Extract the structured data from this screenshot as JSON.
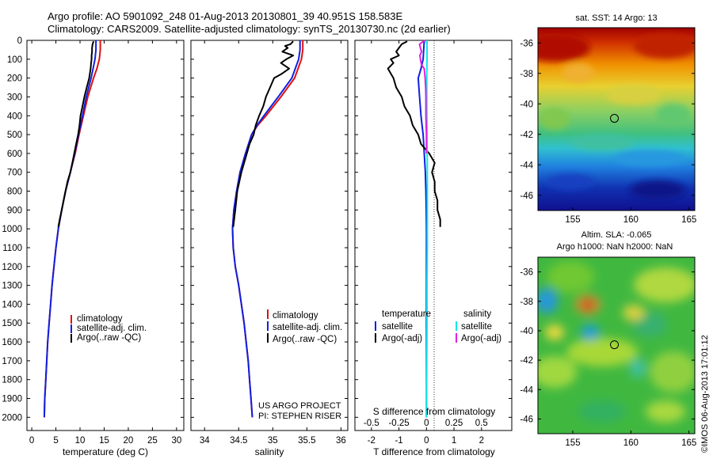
{
  "header": {
    "line1": "Argo profile: AO 5901092_248 01-Aug-2013 20130801_39 40.951S 158.583E",
    "line2": "Climatology: CARS2009. Satellite-adjusted climatology: synTS_20130730.nc (2d earlier)"
  },
  "colors": {
    "climatology": "#e01010",
    "satellite": "#1020e0",
    "argo": "#000000",
    "sal_satellite": "#10e8e8",
    "sal_argo": "#e020e0"
  },
  "chart_data": [
    {
      "type": "line",
      "id": "temperature",
      "xlabel": "temperature (deg C)",
      "xlim": [
        -1,
        31.5
      ],
      "xticks": [
        "0",
        "5",
        "10",
        "15",
        "20",
        "25",
        "30"
      ],
      "ylim": [
        2070,
        0
      ],
      "yticks": [
        "0",
        "100",
        "200",
        "300",
        "400",
        "500",
        "600",
        "700",
        "800",
        "900",
        "1000",
        "1100",
        "1200",
        "1300",
        "1400",
        "1500",
        "1600",
        "1700",
        "1800",
        "1900",
        "2000"
      ],
      "grid": false,
      "legend": [
        "climatology",
        "satellite-adj. clim.",
        "Argo(..raw -QC)"
      ],
      "series": [
        {
          "name": "climatology",
          "color": "#e01010",
          "y": [
            0,
            50,
            100,
            150,
            200,
            300,
            400,
            500,
            600,
            700,
            800,
            900,
            1000,
            1100,
            1200,
            1300,
            1400,
            1500,
            1600,
            1700,
            1800,
            1900,
            2000
          ],
          "x": [
            14.2,
            14.2,
            14.0,
            13.5,
            12.8,
            11.6,
            10.7,
            9.8,
            9.0,
            8.0,
            7.0,
            6.2,
            5.5,
            5.0,
            4.6,
            4.2,
            3.9,
            3.6,
            3.3,
            3.1,
            2.9,
            2.7,
            2.6
          ]
        },
        {
          "name": "satellite-adj. clim.",
          "color": "#1020e0",
          "y": [
            0,
            50,
            100,
            150,
            200,
            300,
            400,
            500,
            600,
            700,
            800,
            900,
            1000,
            1100,
            1200,
            1300,
            1400,
            1500,
            1600,
            1700,
            1800,
            1900,
            2000
          ],
          "x": [
            13.3,
            13.3,
            13.1,
            12.7,
            12.3,
            11.3,
            10.5,
            9.7,
            8.9,
            8.0,
            7.0,
            6.2,
            5.5,
            5.0,
            4.6,
            4.2,
            3.9,
            3.6,
            3.3,
            3.1,
            2.9,
            2.7,
            2.6
          ]
        },
        {
          "name": "Argo(..raw -QC)",
          "color": "#000000",
          "y": [
            5,
            20,
            40,
            60,
            80,
            100,
            120,
            150,
            200,
            250,
            300,
            350,
            400,
            450,
            500,
            550,
            600,
            650,
            700,
            750,
            800,
            850,
            900,
            950,
            990
          ],
          "x": [
            12.8,
            12.6,
            12.5,
            12.5,
            12.4,
            12.4,
            12.3,
            12.2,
            11.9,
            11.4,
            10.9,
            10.5,
            10.1,
            9.9,
            9.6,
            9.2,
            8.8,
            8.4,
            8.0,
            7.4,
            7.0,
            6.6,
            6.2,
            5.8,
            5.5
          ]
        }
      ]
    },
    {
      "type": "line",
      "id": "salinity",
      "xlabel": "salinity",
      "xlim": [
        33.8,
        36.1
      ],
      "xticks": [
        "34",
        "34.5",
        "35",
        "35.5",
        "36"
      ],
      "ylim": [
        2070,
        0
      ],
      "grid": false,
      "legend": [
        "climatology",
        "satellite-adj. clim.",
        "Argo(..raw -QC)"
      ],
      "annotations": [
        "US ARGO PROJECT",
        "PI: STEPHEN RISER"
      ],
      "series": [
        {
          "name": "climatology",
          "color": "#e01010",
          "y": [
            0,
            50,
            100,
            200,
            300,
            400,
            450,
            500,
            600,
            700,
            800,
            900,
            1000,
            1100,
            1200,
            1300,
            1400,
            1500,
            1600,
            1700,
            1800,
            1900,
            2000
          ],
          "x": [
            35.44,
            35.44,
            35.42,
            35.32,
            35.12,
            34.9,
            34.78,
            34.69,
            34.6,
            34.52,
            34.47,
            34.43,
            34.41,
            34.42,
            34.45,
            34.5,
            34.54,
            34.58,
            34.61,
            34.64,
            34.66,
            34.68,
            34.7
          ]
        },
        {
          "name": "satellite-adj. clim.",
          "color": "#1020e0",
          "y": [
            0,
            50,
            100,
            200,
            300,
            400,
            450,
            500,
            600,
            700,
            800,
            900,
            1000,
            1100,
            1200,
            1300,
            1400,
            1500,
            1600,
            1700,
            1800,
            1900,
            2000
          ],
          "x": [
            35.4,
            35.4,
            35.38,
            35.28,
            35.08,
            34.87,
            34.77,
            34.69,
            34.6,
            34.52,
            34.47,
            34.43,
            34.41,
            34.42,
            34.45,
            34.5,
            34.54,
            34.58,
            34.61,
            34.64,
            34.66,
            34.68,
            34.7
          ]
        },
        {
          "name": "Argo(..raw -QC)",
          "color": "#000000",
          "y": [
            5,
            20,
            30,
            40,
            60,
            80,
            100,
            120,
            150,
            180,
            200,
            250,
            300,
            350,
            400,
            450,
            500,
            550,
            600,
            650,
            700,
            800,
            900,
            990
          ],
          "x": [
            35.3,
            35.26,
            35.18,
            35.22,
            35.14,
            35.3,
            35.2,
            35.12,
            35.24,
            35.12,
            35.02,
            34.96,
            34.9,
            34.86,
            34.8,
            34.75,
            34.72,
            34.66,
            34.62,
            34.58,
            34.54,
            34.48,
            34.45,
            34.42
          ]
        }
      ]
    },
    {
      "type": "line",
      "id": "difference",
      "xlabel": "T difference from climatology",
      "xlabel_top": "S difference from climatology",
      "xlim": [
        -2.6,
        3.1
      ],
      "xticks": [
        "-2",
        "-1",
        "0",
        "1",
        "2"
      ],
      "xticks_top": [
        "-0.5",
        "-0.25",
        "0",
        "0.25",
        "0.5"
      ],
      "ylim": [
        2070,
        0
      ],
      "grid": false,
      "legend_headers": [
        "temperature",
        "salinity"
      ],
      "legend": [
        "satellite",
        "Argo(-adj)",
        "satellite",
        "Argo(-adj)"
      ],
      "series": [
        {
          "name": "temperature satellite",
          "color": "#1020e0",
          "y": [
            0,
            50,
            100,
            150,
            200,
            300,
            400,
            500,
            600,
            700,
            800,
            900,
            1000,
            1100,
            1200,
            1500,
            2000
          ],
          "x": [
            -0.08,
            -0.1,
            -0.12,
            -0.2,
            -0.3,
            -0.25,
            -0.2,
            -0.12,
            -0.08,
            -0.04,
            -0.02,
            -0.01,
            0.0,
            0.0,
            0.0,
            0.0,
            0.0
          ]
        },
        {
          "name": "temperature Argo(-adj)",
          "color": "#000000",
          "y": [
            5,
            20,
            40,
            60,
            80,
            100,
            120,
            150,
            200,
            250,
            300,
            350,
            400,
            450,
            500,
            550,
            600,
            650,
            700,
            750,
            800,
            850,
            900,
            950,
            990
          ],
          "x": [
            -0.7,
            -0.9,
            -1.0,
            -1.1,
            -1.0,
            -1.3,
            -1.2,
            -1.4,
            -1.2,
            -1.1,
            -0.9,
            -0.8,
            -0.6,
            -0.5,
            -0.3,
            -0.2,
            0.1,
            0.3,
            0.2,
            0.3,
            0.3,
            0.4,
            0.4,
            0.5,
            0.5
          ]
        },
        {
          "name": "salinity satellite",
          "color": "#10e8e8",
          "y": [
            0,
            100,
            200,
            300,
            500,
            700,
            900,
            1100,
            1300,
            1500,
            1700,
            2000
          ],
          "x": [
            0.02,
            0.02,
            0.01,
            0.01,
            0.02,
            0.03,
            0.03,
            0.03,
            0.02,
            0.02,
            0.01,
            0.0
          ]
        },
        {
          "name": "salinity Argo(-adj)",
          "color": "#e020e0",
          "y": [
            0,
            20,
            40,
            60,
            80,
            100,
            130,
            150,
            200,
            250,
            300,
            400,
            500,
            600
          ],
          "x": [
            -0.06,
            -0.25,
            -0.22,
            -0.18,
            -0.24,
            -0.22,
            -0.18,
            -0.08,
            -0.05,
            -0.03,
            -0.02,
            -0.02,
            0.0,
            0.0
          ]
        }
      ]
    },
    {
      "type": "heatmap",
      "id": "sst_map",
      "title": "sat. SST: 14 Argo: 13",
      "xlim": [
        152,
        165.5
      ],
      "ylim": [
        -47,
        -35
      ],
      "xticks": [
        "155",
        "160",
        "165"
      ],
      "yticks": [
        "-36",
        "-38",
        "-40",
        "-42",
        "-44",
        "-46"
      ],
      "marker": {
        "lon": 158.583,
        "lat": -40.951
      }
    },
    {
      "type": "heatmap",
      "id": "sla_map",
      "title": "Altim. SLA: -0.065",
      "subtitle": "Argo h1000: NaN h2000: NaN",
      "xlim": [
        152,
        165.5
      ],
      "ylim": [
        -47,
        -35
      ],
      "xticks": [
        "155",
        "160",
        "165"
      ],
      "yticks": [
        "-36",
        "-38",
        "-40",
        "-42",
        "-44",
        "-46"
      ],
      "marker": {
        "lon": 158.583,
        "lat": -40.951
      }
    }
  ],
  "stamp": "©IMOS 06-Aug-2013 17:01:12"
}
